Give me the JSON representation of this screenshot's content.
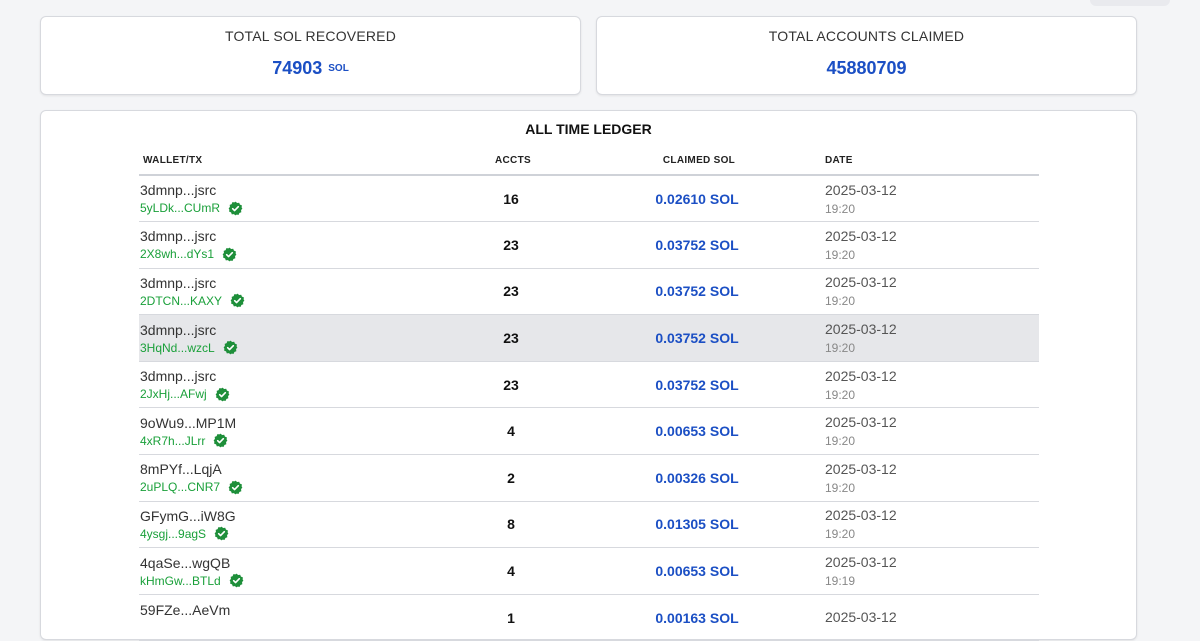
{
  "stats": {
    "sol_recovered": {
      "label": "TOTAL SOL RECOVERED",
      "value": "74903",
      "unit": "SOL"
    },
    "accounts_claimed": {
      "label": "TOTAL ACCOUNTS CLAIMED",
      "value": "45880709"
    }
  },
  "ledger": {
    "title": "ALL TIME LEDGER",
    "columns": {
      "wallet": "WALLET/TX",
      "accts": "ACCTS",
      "claimed": "CLAIMED SOL",
      "date": "DATE"
    },
    "rows": [
      {
        "wallet": "3dmnp...jsrc",
        "tx": "5yLDk...CUmR",
        "accts": "16",
        "sol": "0.02610 SOL",
        "date": "2025-03-12",
        "time": "19:20"
      },
      {
        "wallet": "3dmnp...jsrc",
        "tx": "2X8wh...dYs1",
        "accts": "23",
        "sol": "0.03752 SOL",
        "date": "2025-03-12",
        "time": "19:20"
      },
      {
        "wallet": "3dmnp...jsrc",
        "tx": "2DTCN...KAXY",
        "accts": "23",
        "sol": "0.03752 SOL",
        "date": "2025-03-12",
        "time": "19:20"
      },
      {
        "wallet": "3dmnp...jsrc",
        "tx": "3HqNd...wzcL",
        "accts": "23",
        "sol": "0.03752 SOL",
        "date": "2025-03-12",
        "time": "19:20"
      },
      {
        "wallet": "3dmnp...jsrc",
        "tx": "2JxHj...AFwj",
        "accts": "23",
        "sol": "0.03752 SOL",
        "date": "2025-03-12",
        "time": "19:20"
      },
      {
        "wallet": "9oWu9...MP1M",
        "tx": "4xR7h...JLrr",
        "accts": "4",
        "sol": "0.00653 SOL",
        "date": "2025-03-12",
        "time": "19:20"
      },
      {
        "wallet": "8mPYf...LqjA",
        "tx": "2uPLQ...CNR7",
        "accts": "2",
        "sol": "0.00326 SOL",
        "date": "2025-03-12",
        "time": "19:20"
      },
      {
        "wallet": "GFymG...iW8G",
        "tx": "4ysgj...9agS",
        "accts": "8",
        "sol": "0.01305 SOL",
        "date": "2025-03-12",
        "time": "19:20"
      },
      {
        "wallet": "4qaSe...wgQB",
        "tx": "kHmGw...BTLd",
        "accts": "4",
        "sol": "0.00653 SOL",
        "date": "2025-03-12",
        "time": "19:19"
      },
      {
        "wallet": "59FZe...AeVm",
        "tx": "",
        "accts": "1",
        "sol": "0.00163 SOL",
        "date": "2025-03-12",
        "time": ""
      }
    ],
    "highlighted_row": 3
  },
  "icons": {
    "verified": "check-badge-icon"
  },
  "colors": {
    "accent": "#1b4fc4",
    "tx_green": "#1aa03a",
    "verified_green": "#1e8f3a"
  }
}
